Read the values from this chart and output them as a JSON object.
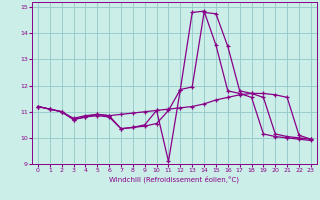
{
  "xlabel": "Windchill (Refroidissement éolien,°C)",
  "bg_color": "#cceee8",
  "line_color": "#880088",
  "grid_color": "#99cccc",
  "xlim": [
    -0.5,
    23.5
  ],
  "ylim": [
    9,
    15.2
  ],
  "yticks": [
    9,
    10,
    11,
    12,
    13,
    14,
    15
  ],
  "xticks": [
    0,
    1,
    2,
    3,
    4,
    5,
    6,
    7,
    8,
    9,
    10,
    11,
    12,
    13,
    14,
    15,
    16,
    17,
    18,
    19,
    20,
    21,
    22,
    23
  ],
  "series1_x": [
    0,
    1,
    2,
    3,
    4,
    5,
    6,
    7,
    8,
    9,
    10,
    11,
    12,
    13,
    14,
    15,
    16,
    17,
    18,
    19,
    20,
    21,
    22,
    23
  ],
  "series1_y": [
    11.2,
    11.1,
    11.0,
    10.7,
    10.8,
    10.85,
    10.8,
    10.35,
    10.4,
    10.45,
    10.55,
    11.05,
    11.85,
    11.95,
    14.8,
    14.75,
    13.5,
    11.8,
    11.7,
    11.55,
    10.15,
    10.05,
    10.0,
    9.95
  ],
  "series2_x": [
    0,
    1,
    2,
    3,
    4,
    5,
    6,
    7,
    8,
    9,
    10,
    11,
    12,
    13,
    14,
    15,
    16,
    17,
    18,
    19,
    20,
    21,
    22,
    23
  ],
  "series2_y": [
    11.2,
    11.1,
    11.0,
    10.75,
    10.85,
    10.9,
    10.85,
    10.9,
    10.95,
    11.0,
    11.05,
    11.1,
    11.15,
    11.2,
    11.3,
    11.45,
    11.55,
    11.65,
    11.7,
    11.7,
    11.65,
    11.55,
    10.1,
    9.95
  ],
  "series3_x": [
    0,
    1,
    2,
    3,
    4,
    5,
    6,
    7,
    8,
    9,
    10,
    11,
    12,
    13,
    14,
    15,
    16,
    17,
    18,
    19,
    20,
    21,
    22,
    23
  ],
  "series3_y": [
    11.2,
    11.1,
    11.0,
    10.7,
    10.8,
    10.9,
    10.85,
    10.35,
    10.4,
    10.5,
    11.05,
    9.1,
    11.85,
    14.8,
    14.85,
    13.55,
    11.8,
    11.7,
    11.55,
    10.15,
    10.05,
    10.0,
    9.95,
    9.9
  ]
}
